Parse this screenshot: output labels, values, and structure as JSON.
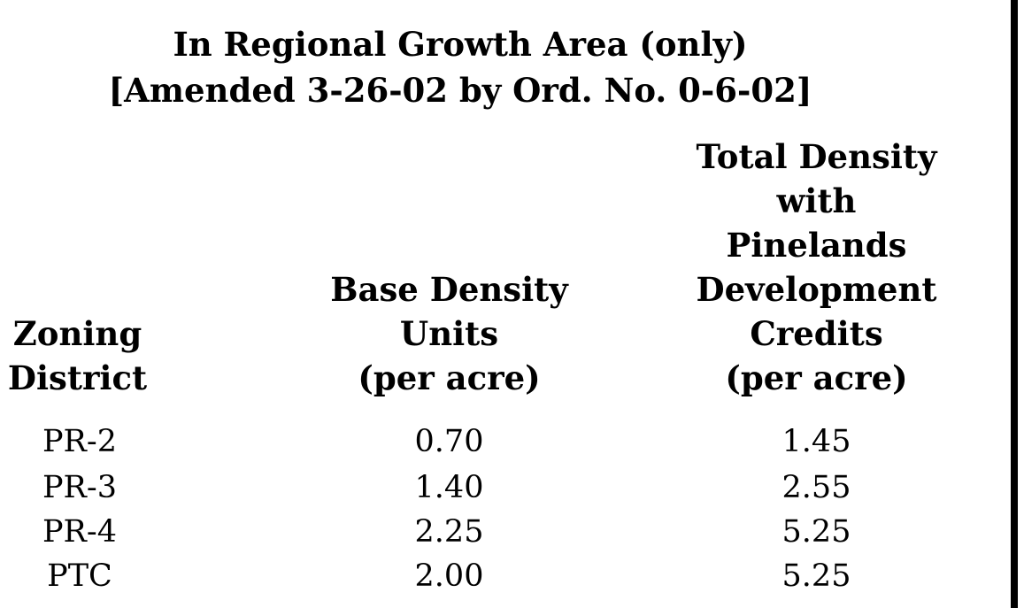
{
  "title": {
    "line1": "In Regional Growth Area (only)",
    "line2": "[Amended 3-26-02 by Ord. No. 0-6-02]"
  },
  "headers": {
    "zoning": [
      "Zoning",
      "District"
    ],
    "base": [
      "Base Density",
      "Units",
      "(per acre)"
    ],
    "total": [
      "Total Density",
      "with",
      "Pinelands",
      "Development",
      "Credits",
      "(per acre)"
    ]
  },
  "rows": [
    {
      "district": "PR-2",
      "base": "0.70",
      "total": "1.45"
    },
    {
      "district": "PR-3",
      "base": "1.40",
      "total": "2.55"
    },
    {
      "district": "PR-4",
      "base": "2.25",
      "total": "5.25"
    },
    {
      "district": "PTC",
      "base": "2.00",
      "total": "5.25"
    }
  ]
}
